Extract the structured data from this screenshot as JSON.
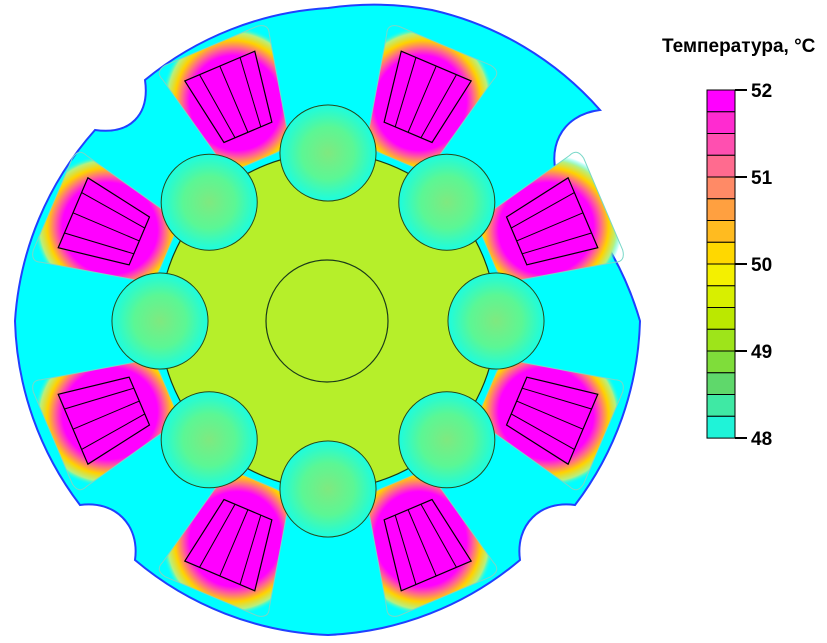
{
  "legend": {
    "title": "Температура, °C",
    "tick_labels": [
      "52",
      "51",
      "50",
      "49",
      "48"
    ],
    "band_colors": [
      "#ff00ff",
      "#ff2bd0",
      "#ff4fb0",
      "#ff6b8f",
      "#ff8a66",
      "#ffa040",
      "#ffbb20",
      "#ffd800",
      "#f4f000",
      "#d8ef00",
      "#bbe800",
      "#9ee41a",
      "#7fdd3a",
      "#5fd86b",
      "#3fe9a4",
      "#1ff3d8"
    ]
  },
  "colors": {
    "stator": "#00ffff",
    "rotor": "#b6ef2a",
    "winding_hot": "#ff00ff",
    "outline": "#000000",
    "outer_outline": "#2040ff"
  }
}
